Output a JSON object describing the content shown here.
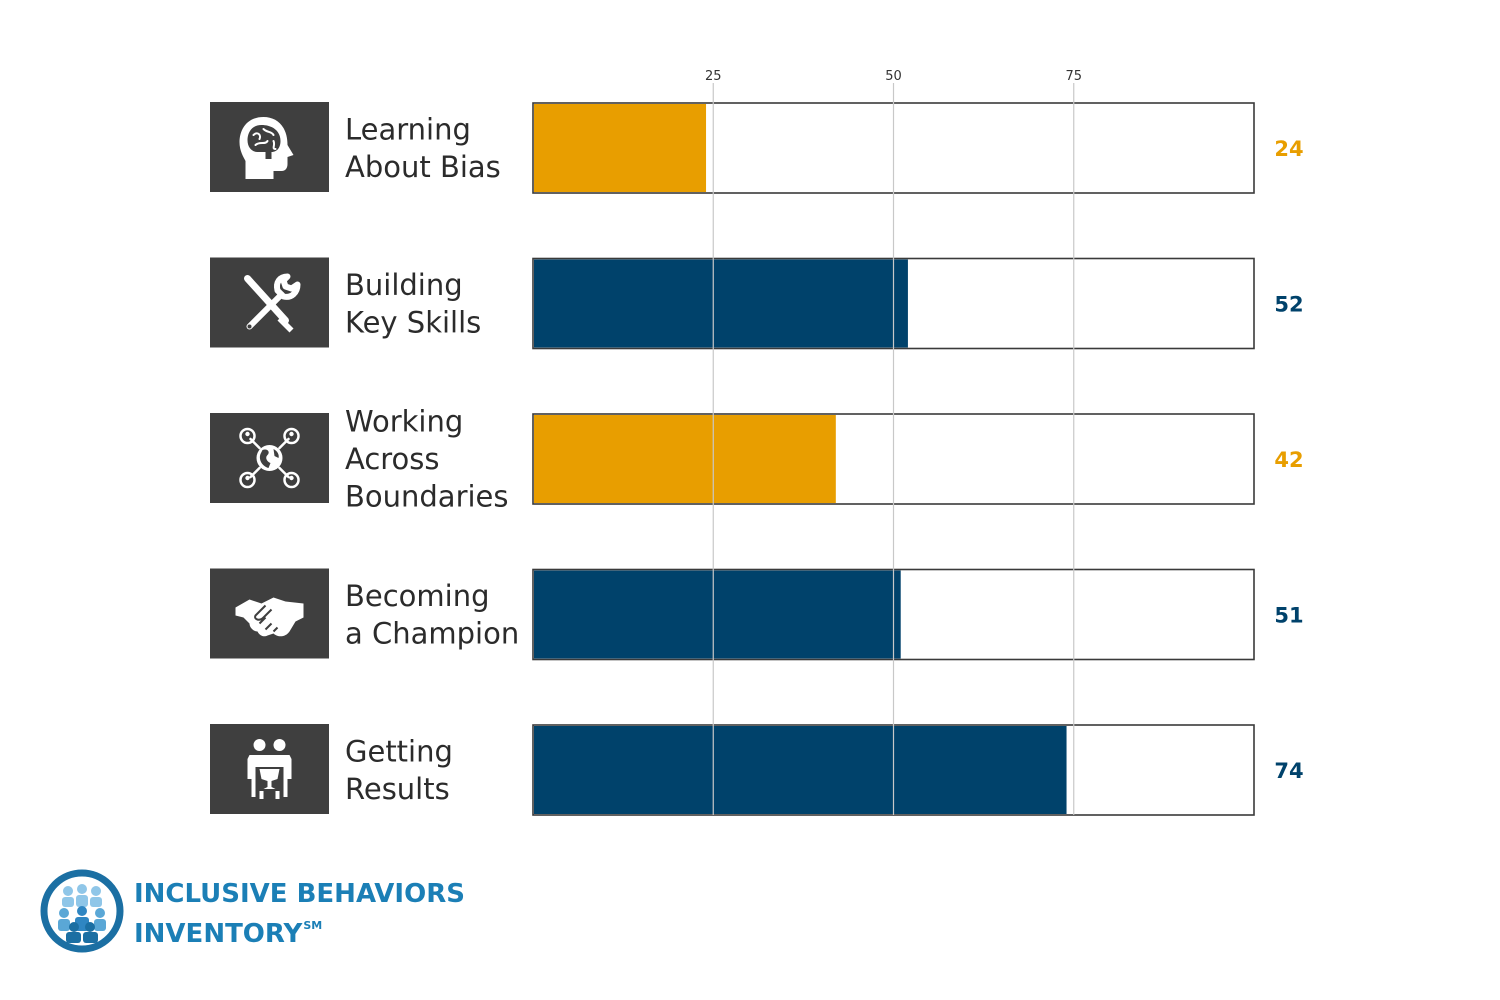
{
  "chart_data": {
    "type": "bar",
    "orientation": "horizontal",
    "categories": [
      [
        "Learning",
        "About Bias"
      ],
      [
        "Building",
        "Key Skills"
      ],
      [
        "Working",
        "Across",
        "Boundaries"
      ],
      [
        "Becoming",
        "a Champion"
      ],
      [
        "Getting",
        "Results"
      ]
    ],
    "values": [
      24,
      52,
      42,
      51,
      74
    ],
    "value_labels": [
      "24",
      "52",
      "42",
      "51",
      "74"
    ],
    "icons": [
      "brain-head-icon",
      "tools-icon",
      "globe-network-icon",
      "handshake-icon",
      "team-trophy-icon"
    ],
    "bar_colors": [
      "#e89e00",
      "#00426b",
      "#e89e00",
      "#00426b",
      "#00426b"
    ],
    "xlim": [
      0,
      100
    ],
    "ticks": [
      25,
      50,
      75
    ],
    "tick_labels": [
      "25",
      "50",
      "75"
    ],
    "grid": true,
    "title": "",
    "xlabel": "",
    "ylabel": ""
  },
  "colors": {
    "orange": "#e89e00",
    "navy": "#00426b",
    "icon_box": "#3f3f3f",
    "brand_blue": "#1b7fb6"
  },
  "logo": {
    "line1": "INCLUSIVE BEHAVIORS",
    "line2": "INVENTORY",
    "sup": "SM"
  }
}
